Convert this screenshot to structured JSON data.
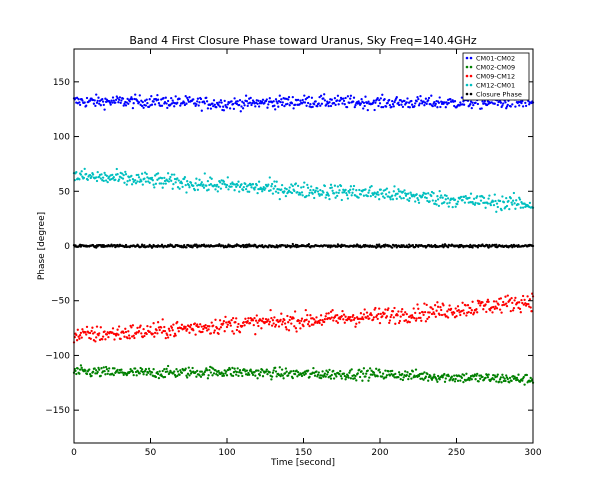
{
  "chart_data": {
    "type": "scatter",
    "title": "Band 4 First Closure Phase toward Uranus, Sky Freq=140.4GHz",
    "xlabel": "Time [second]",
    "ylabel": "Phase [degree]",
    "xlim": [
      0,
      300
    ],
    "ylim": [
      -180,
      180
    ],
    "x_ticks": [
      "0",
      "50",
      "100",
      "150",
      "200",
      "250",
      "300"
    ],
    "y_ticks": [
      "−150",
      "−100",
      "−50",
      "0",
      "50",
      "100",
      "150"
    ],
    "x_tick_values": [
      0,
      50,
      100,
      150,
      200,
      250,
      300
    ],
    "y_tick_values": [
      -150,
      -100,
      -50,
      0,
      50,
      100,
      150
    ],
    "grid": false,
    "legend_position": "top-right",
    "sample_interval": 0.5,
    "series": [
      {
        "name": "CM01-CM02",
        "color": "#0000ff",
        "trend": [
          [
            0,
            132
          ],
          [
            50,
            132
          ],
          [
            100,
            130
          ],
          [
            150,
            132
          ],
          [
            200,
            131
          ],
          [
            250,
            131
          ],
          [
            300,
            131
          ]
        ],
        "scatter": 4
      },
      {
        "name": "CM02-CM09",
        "color": "#008000",
        "trend": [
          [
            0,
            -115
          ],
          [
            50,
            -116
          ],
          [
            100,
            -115
          ],
          [
            150,
            -117
          ],
          [
            200,
            -117
          ],
          [
            250,
            -120
          ],
          [
            300,
            -122
          ]
        ],
        "scatter": 3.5
      },
      {
        "name": "CM09-CM12",
        "color": "#ff0000",
        "trend": [
          [
            0,
            -82
          ],
          [
            50,
            -78
          ],
          [
            100,
            -72
          ],
          [
            150,
            -68
          ],
          [
            200,
            -64
          ],
          [
            250,
            -58
          ],
          [
            300,
            -50
          ]
        ],
        "scatter": 5.5
      },
      {
        "name": "CM12-CM01",
        "color": "#00bfbf",
        "trend": [
          [
            0,
            64
          ],
          [
            50,
            60
          ],
          [
            100,
            55
          ],
          [
            150,
            51
          ],
          [
            200,
            48
          ],
          [
            250,
            42
          ],
          [
            300,
            38
          ]
        ],
        "scatter": 5
      },
      {
        "name": "Closure Phase",
        "color": "#000000",
        "trend": [
          [
            0,
            0
          ],
          [
            50,
            0
          ],
          [
            100,
            0
          ],
          [
            150,
            0
          ],
          [
            200,
            0
          ],
          [
            250,
            0
          ],
          [
            300,
            0
          ]
        ],
        "scatter": 1
      }
    ]
  }
}
